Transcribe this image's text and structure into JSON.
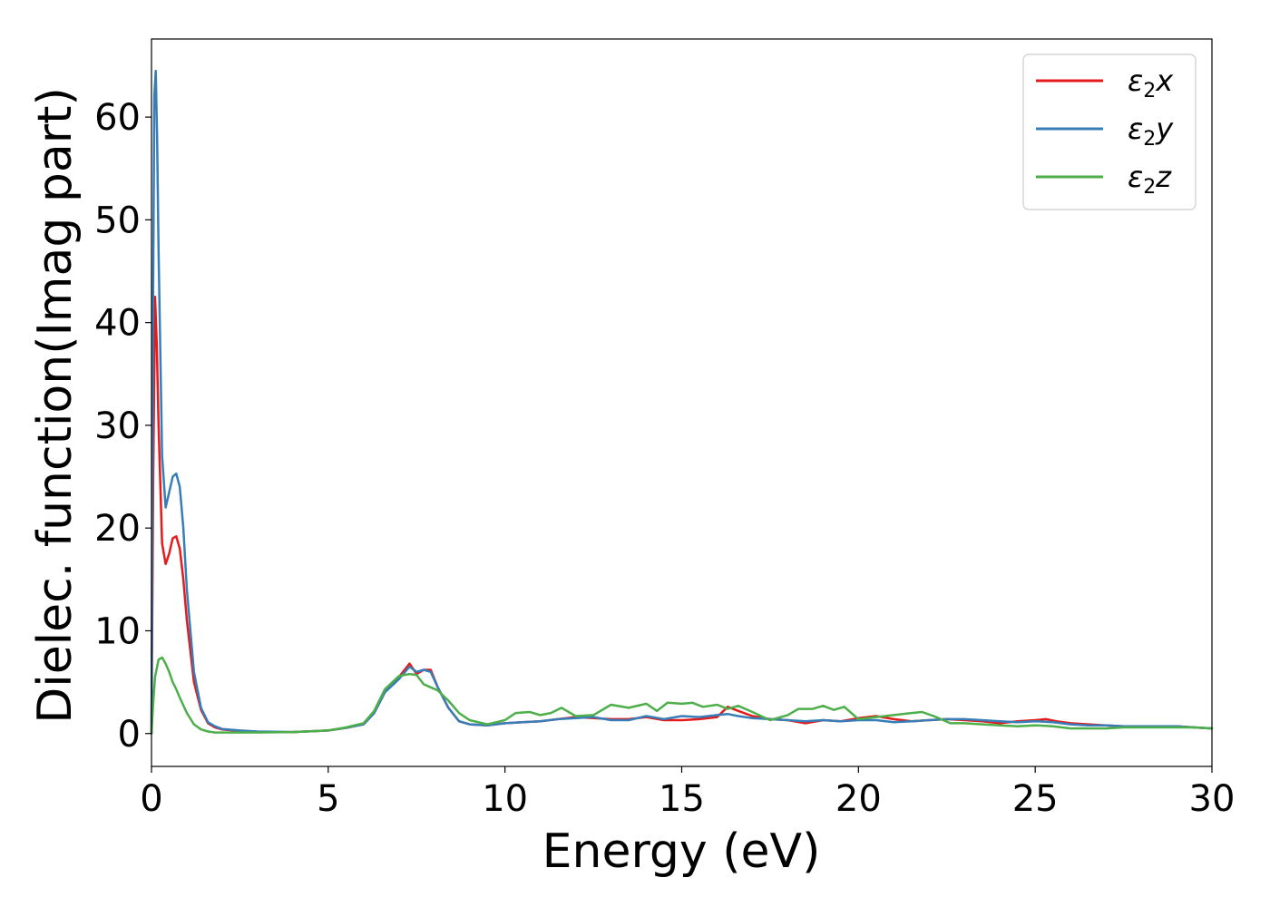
{
  "chart_data": {
    "type": "line",
    "title": "",
    "xlabel": "Energy (eV)",
    "ylabel": "Dielec. function(Imag part)",
    "xlim": [
      0,
      30
    ],
    "ylim": [
      -3.2,
      67.6
    ],
    "xticks": [
      0,
      5,
      10,
      15,
      20,
      25,
      30
    ],
    "yticks": [
      0,
      10,
      20,
      30,
      40,
      50,
      60
    ],
    "grid": false,
    "legend_position": "top-right",
    "series": [
      {
        "name": "ε2x",
        "legend": {
          "base": "ε",
          "sub": "2",
          "axis": "x"
        },
        "color": "#e41a1c",
        "x": [
          0,
          0.05,
          0.1,
          0.15,
          0.2,
          0.3,
          0.4,
          0.5,
          0.6,
          0.7,
          0.8,
          0.9,
          1.0,
          1.2,
          1.4,
          1.6,
          1.8,
          2.0,
          2.5,
          3,
          4,
          5,
          5.5,
          6,
          6.3,
          6.6,
          7,
          7.3,
          7.5,
          7.7,
          7.9,
          8.1,
          8.4,
          8.7,
          9,
          9.5,
          10,
          10.5,
          11,
          11.5,
          12,
          12.5,
          13,
          13.5,
          14,
          14.5,
          15,
          15.5,
          16,
          16.3,
          16.6,
          17,
          17.5,
          18,
          18.5,
          19,
          19.5,
          20,
          20.5,
          21,
          21.5,
          22,
          22.5,
          23,
          23.5,
          24,
          24.5,
          25,
          25.3,
          25.6,
          26,
          26.5,
          27,
          27.5,
          28,
          28.5,
          29,
          29.5,
          30
        ],
        "y": [
          0,
          25,
          42.5,
          38,
          30,
          18.5,
          16.5,
          17.5,
          19,
          19.2,
          18,
          15,
          11,
          5,
          2.3,
          1,
          0.6,
          0.4,
          0.25,
          0.15,
          0.15,
          0.3,
          0.55,
          0.9,
          2,
          4,
          5.5,
          6.8,
          5.8,
          6.2,
          6.2,
          4.5,
          2.5,
          1.2,
          0.9,
          0.8,
          1.0,
          1.1,
          1.2,
          1.4,
          1.6,
          1.5,
          1.4,
          1.4,
          1.6,
          1.3,
          1.3,
          1.4,
          1.6,
          2.6,
          2.2,
          1.7,
          1.4,
          1.3,
          1.0,
          1.3,
          1.2,
          1.5,
          1.7,
          1.4,
          1.2,
          1.3,
          1.4,
          1.3,
          1.2,
          1.0,
          1.2,
          1.3,
          1.4,
          1.2,
          1.0,
          0.9,
          0.8,
          0.7,
          0.7,
          0.7,
          0.7,
          0.6,
          0.5
        ]
      },
      {
        "name": "ε2y",
        "legend": {
          "base": "ε",
          "sub": "2",
          "axis": "y"
        },
        "color": "#377eb8",
        "x": [
          0,
          0.04,
          0.08,
          0.12,
          0.16,
          0.2,
          0.3,
          0.4,
          0.5,
          0.6,
          0.7,
          0.8,
          0.9,
          1.0,
          1.2,
          1.4,
          1.6,
          1.8,
          2.0,
          2.5,
          3,
          4,
          5,
          5.5,
          6,
          6.3,
          6.6,
          7,
          7.3,
          7.5,
          7.7,
          7.9,
          8.1,
          8.4,
          8.7,
          9,
          9.5,
          10,
          10.5,
          11,
          11.5,
          12,
          12.5,
          13,
          13.5,
          14,
          14.5,
          15,
          15.5,
          16,
          16.3,
          16.6,
          17,
          17.5,
          18,
          18.5,
          19,
          19.5,
          20,
          20.5,
          21,
          21.5,
          22,
          22.5,
          23,
          23.5,
          24,
          24.5,
          25,
          25.5,
          26,
          26.5,
          27,
          27.5,
          28,
          28.5,
          29,
          29.5,
          30
        ],
        "y": [
          0,
          40,
          62,
          64.5,
          58,
          47,
          27,
          22,
          23.5,
          25,
          25.3,
          24,
          20,
          14,
          6,
          2.5,
          1.1,
          0.7,
          0.45,
          0.3,
          0.2,
          0.15,
          0.3,
          0.55,
          0.9,
          2,
          4,
          5.3,
          6.5,
          6.0,
          6.2,
          6.0,
          4.5,
          2.5,
          1.2,
          0.9,
          0.8,
          1.0,
          1.1,
          1.2,
          1.4,
          1.5,
          1.6,
          1.3,
          1.3,
          1.7,
          1.4,
          1.7,
          1.6,
          1.8,
          1.9,
          1.7,
          1.5,
          1.4,
          1.3,
          1.2,
          1.3,
          1.2,
          1.3,
          1.3,
          1.1,
          1.2,
          1.3,
          1.4,
          1.4,
          1.3,
          1.2,
          1.1,
          1.2,
          1.1,
          0.9,
          0.8,
          0.8,
          0.7,
          0.7,
          0.7,
          0.7,
          0.6,
          0.5
        ]
      },
      {
        "name": "ε2z",
        "legend": {
          "base": "ε",
          "sub": "2",
          "axis": "z"
        },
        "color": "#4daf4a",
        "x": [
          0,
          0.05,
          0.1,
          0.2,
          0.3,
          0.4,
          0.5,
          0.6,
          0.7,
          0.8,
          1.0,
          1.2,
          1.4,
          1.6,
          1.8,
          2.0,
          2.5,
          3,
          4,
          5,
          5.5,
          6,
          6.3,
          6.6,
          7,
          7.3,
          7.5,
          7.7,
          7.9,
          8.1,
          8.4,
          8.7,
          9,
          9.5,
          10,
          10.3,
          10.7,
          11,
          11.3,
          11.6,
          12,
          12.5,
          13,
          13.5,
          14,
          14.3,
          14.6,
          15,
          15.3,
          15.6,
          16,
          16.3,
          16.6,
          17,
          17.5,
          18,
          18.3,
          18.7,
          19,
          19.3,
          19.6,
          20,
          20.5,
          21,
          21.5,
          21.8,
          22.2,
          22.6,
          23,
          23.5,
          24,
          24.5,
          25,
          25.5,
          26,
          26.5,
          27,
          27.5,
          28,
          28.5,
          29,
          29.5,
          30
        ],
        "y": [
          0,
          3,
          5.5,
          7.2,
          7.4,
          6.8,
          6.0,
          5.0,
          4.3,
          3.5,
          2.0,
          0.9,
          0.4,
          0.2,
          0.1,
          0.1,
          0.1,
          0.1,
          0.15,
          0.3,
          0.6,
          1.0,
          2.2,
          4.3,
          5.6,
          5.8,
          5.7,
          4.8,
          4.5,
          4.2,
          3.2,
          2.0,
          1.3,
          0.9,
          1.3,
          2.0,
          2.1,
          1.8,
          2.0,
          2.5,
          1.7,
          1.8,
          2.8,
          2.5,
          2.9,
          2.2,
          3.0,
          2.9,
          3.0,
          2.6,
          2.8,
          2.4,
          2.7,
          2.1,
          1.3,
          1.8,
          2.4,
          2.4,
          2.7,
          2.3,
          2.6,
          1.4,
          1.6,
          1.8,
          2.0,
          2.1,
          1.6,
          1.0,
          1.0,
          0.9,
          0.8,
          0.7,
          0.8,
          0.7,
          0.5,
          0.5,
          0.5,
          0.6,
          0.6,
          0.6,
          0.6,
          0.6,
          0.5
        ]
      }
    ]
  }
}
